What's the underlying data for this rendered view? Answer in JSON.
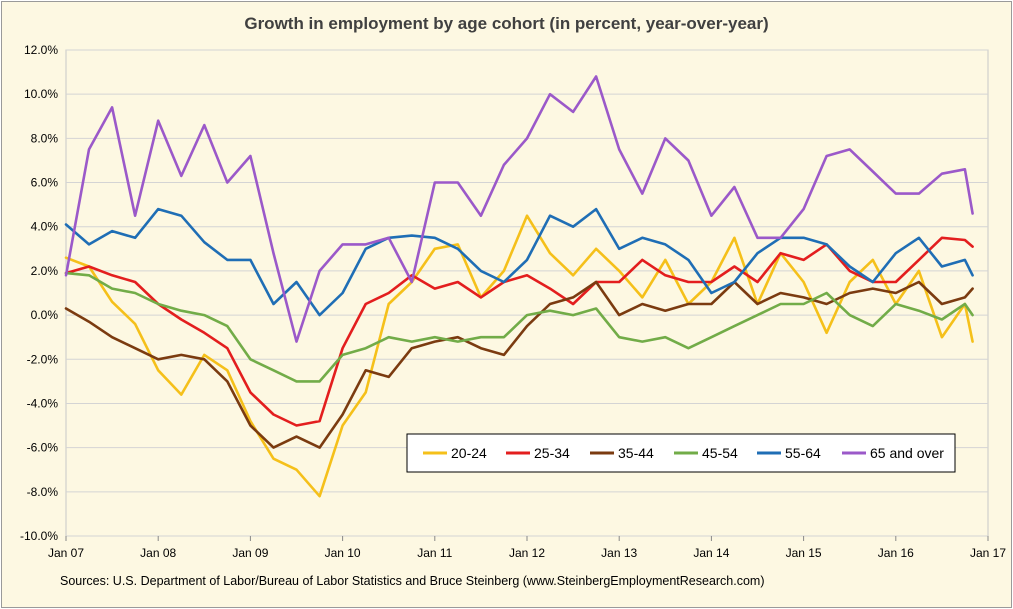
{
  "chart_data": {
    "type": "line",
    "title": "Growth in employment by age cohort (in percent, year-over-year)",
    "source": "Sources: U.S. Department of Labor/Bureau of Labor Statistics and Bruce Steinberg (www.SteinbergEmploymentResearch.com)",
    "xlabel": "",
    "ylabel": "",
    "ylim": [
      -10,
      12
    ],
    "xlim": [
      "2007-01",
      "2017-01"
    ],
    "grid": "horizontal",
    "legend_position": "bottom-right",
    "x_tick_labels": [
      "Jan 07",
      "Jan 08",
      "Jan 09",
      "Jan 10",
      "Jan 11",
      "Jan 12",
      "Jan 13",
      "Jan 14",
      "Jan 15",
      "Jan 16",
      "Jan 17"
    ],
    "y_tick_labels": [
      "12.0%",
      "10.0%",
      "8.0%",
      "6.0%",
      "4.0%",
      "2.0%",
      "0.0%",
      "-2.0%",
      "-4.0%",
      "-6.0%",
      "-8.0%",
      "-10.0%"
    ],
    "series": [
      {
        "name": "20-24",
        "color": "#f5c01a",
        "x": [
          "2007-01",
          "2007-04",
          "2007-07",
          "2007-10",
          "2008-01",
          "2008-04",
          "2008-07",
          "2008-10",
          "2009-01",
          "2009-04",
          "2009-07",
          "2009-10",
          "2010-01",
          "2010-04",
          "2010-07",
          "2010-10",
          "2011-01",
          "2011-04",
          "2011-07",
          "2011-10",
          "2012-01",
          "2012-04",
          "2012-07",
          "2012-10",
          "2013-01",
          "2013-04",
          "2013-07",
          "2013-10",
          "2014-01",
          "2014-04",
          "2014-07",
          "2014-10",
          "2015-01",
          "2015-04",
          "2015-07",
          "2015-10",
          "2016-01",
          "2016-04",
          "2016-07",
          "2016-10",
          "2016-11"
        ],
        "values": [
          2.6,
          2.2,
          0.6,
          -0.4,
          -2.5,
          -3.6,
          -1.8,
          -2.5,
          -4.8,
          -6.5,
          -7.0,
          -8.2,
          -5.0,
          -3.5,
          0.5,
          1.5,
          3.0,
          3.2,
          0.8,
          2.0,
          4.5,
          2.8,
          1.8,
          3.0,
          2.0,
          0.8,
          2.5,
          0.5,
          1.5,
          3.5,
          0.5,
          2.8,
          1.5,
          -0.8,
          1.5,
          2.5,
          0.5,
          2.0,
          -1.0,
          0.5,
          -1.2
        ]
      },
      {
        "name": "25-34",
        "color": "#e31e1e",
        "x": [
          "2007-01",
          "2007-04",
          "2007-07",
          "2007-10",
          "2008-01",
          "2008-04",
          "2008-07",
          "2008-10",
          "2009-01",
          "2009-04",
          "2009-07",
          "2009-10",
          "2010-01",
          "2010-04",
          "2010-07",
          "2010-10",
          "2011-01",
          "2011-04",
          "2011-07",
          "2011-10",
          "2012-01",
          "2012-04",
          "2012-07",
          "2012-10",
          "2013-01",
          "2013-04",
          "2013-07",
          "2013-10",
          "2014-01",
          "2014-04",
          "2014-07",
          "2014-10",
          "2015-01",
          "2015-04",
          "2015-07",
          "2015-10",
          "2016-01",
          "2016-04",
          "2016-07",
          "2016-10",
          "2016-11"
        ],
        "values": [
          1.9,
          2.2,
          1.8,
          1.5,
          0.5,
          -0.2,
          -0.8,
          -1.5,
          -3.5,
          -4.5,
          -5.0,
          -4.8,
          -1.5,
          0.5,
          1.0,
          1.8,
          1.2,
          1.5,
          0.8,
          1.5,
          1.8,
          1.2,
          0.5,
          1.5,
          1.5,
          2.5,
          1.8,
          1.5,
          1.5,
          2.2,
          1.5,
          2.8,
          2.5,
          3.2,
          2.0,
          1.5,
          1.5,
          2.5,
          3.5,
          3.4,
          3.1
        ]
      },
      {
        "name": "35-44",
        "color": "#7b3b10",
        "x": [
          "2007-01",
          "2007-04",
          "2007-07",
          "2007-10",
          "2008-01",
          "2008-04",
          "2008-07",
          "2008-10",
          "2009-01",
          "2009-04",
          "2009-07",
          "2009-10",
          "2010-01",
          "2010-04",
          "2010-07",
          "2010-10",
          "2011-01",
          "2011-04",
          "2011-07",
          "2011-10",
          "2012-01",
          "2012-04",
          "2012-07",
          "2012-10",
          "2013-01",
          "2013-04",
          "2013-07",
          "2013-10",
          "2014-01",
          "2014-04",
          "2014-07",
          "2014-10",
          "2015-01",
          "2015-04",
          "2015-07",
          "2015-10",
          "2016-01",
          "2016-04",
          "2016-07",
          "2016-10",
          "2016-11"
        ],
        "values": [
          0.3,
          -0.3,
          -1.0,
          -1.5,
          -2.0,
          -1.8,
          -2.0,
          -3.0,
          -5.0,
          -6.0,
          -5.5,
          -6.0,
          -4.5,
          -2.5,
          -2.8,
          -1.5,
          -1.2,
          -1.0,
          -1.5,
          -1.8,
          -0.5,
          0.5,
          0.8,
          1.5,
          0.0,
          0.5,
          0.2,
          0.5,
          0.5,
          1.5,
          0.5,
          1.0,
          0.8,
          0.5,
          1.0,
          1.2,
          1.0,
          1.5,
          0.5,
          0.8,
          1.2
        ]
      },
      {
        "name": "45-54",
        "color": "#72ac48",
        "x": [
          "2007-01",
          "2007-04",
          "2007-07",
          "2007-10",
          "2008-01",
          "2008-04",
          "2008-07",
          "2008-10",
          "2009-01",
          "2009-04",
          "2009-07",
          "2009-10",
          "2010-01",
          "2010-04",
          "2010-07",
          "2010-10",
          "2011-01",
          "2011-04",
          "2011-07",
          "2011-10",
          "2012-01",
          "2012-04",
          "2012-07",
          "2012-10",
          "2013-01",
          "2013-04",
          "2013-07",
          "2013-10",
          "2014-01",
          "2014-04",
          "2014-07",
          "2014-10",
          "2015-01",
          "2015-04",
          "2015-07",
          "2015-10",
          "2016-01",
          "2016-04",
          "2016-07",
          "2016-10",
          "2016-11"
        ],
        "values": [
          1.9,
          1.8,
          1.2,
          1.0,
          0.5,
          0.2,
          0.0,
          -0.5,
          -2.0,
          -2.5,
          -3.0,
          -3.0,
          -1.8,
          -1.5,
          -1.0,
          -1.2,
          -1.0,
          -1.2,
          -1.0,
          -1.0,
          0.0,
          0.2,
          0.0,
          0.3,
          -1.0,
          -1.2,
          -1.0,
          -1.5,
          -1.0,
          -0.5,
          0.0,
          0.5,
          0.5,
          1.0,
          0.0,
          -0.5,
          0.5,
          0.2,
          -0.2,
          0.5,
          0.0
        ]
      },
      {
        "name": "55-64",
        "color": "#1f6eb5",
        "x": [
          "2007-01",
          "2007-04",
          "2007-07",
          "2007-10",
          "2008-01",
          "2008-04",
          "2008-07",
          "2008-10",
          "2009-01",
          "2009-04",
          "2009-07",
          "2009-10",
          "2010-01",
          "2010-04",
          "2010-07",
          "2010-10",
          "2011-01",
          "2011-04",
          "2011-07",
          "2011-10",
          "2012-01",
          "2012-04",
          "2012-07",
          "2012-10",
          "2013-01",
          "2013-04",
          "2013-07",
          "2013-10",
          "2014-01",
          "2014-04",
          "2014-07",
          "2014-10",
          "2015-01",
          "2015-04",
          "2015-07",
          "2015-10",
          "2016-01",
          "2016-04",
          "2016-07",
          "2016-10",
          "2016-11"
        ],
        "values": [
          4.1,
          3.2,
          3.8,
          3.5,
          4.8,
          4.5,
          3.3,
          2.5,
          2.5,
          0.5,
          1.5,
          0.0,
          1.0,
          3.0,
          3.5,
          3.6,
          3.5,
          3.0,
          2.0,
          1.5,
          2.5,
          4.5,
          4.0,
          4.8,
          3.0,
          3.5,
          3.2,
          2.5,
          1.0,
          1.5,
          2.8,
          3.5,
          3.5,
          3.2,
          2.2,
          1.5,
          2.8,
          3.5,
          2.2,
          2.5,
          1.8
        ]
      },
      {
        "name": "65 and over",
        "color": "#9b59c9",
        "x": [
          "2007-01",
          "2007-04",
          "2007-07",
          "2007-10",
          "2008-01",
          "2008-04",
          "2008-07",
          "2008-10",
          "2009-01",
          "2009-04",
          "2009-07",
          "2009-10",
          "2010-01",
          "2010-04",
          "2010-07",
          "2010-10",
          "2011-01",
          "2011-04",
          "2011-07",
          "2011-10",
          "2012-01",
          "2012-04",
          "2012-07",
          "2012-10",
          "2013-01",
          "2013-04",
          "2013-07",
          "2013-10",
          "2014-01",
          "2014-04",
          "2014-07",
          "2014-10",
          "2015-01",
          "2015-04",
          "2015-07",
          "2015-10",
          "2016-01",
          "2016-04",
          "2016-07",
          "2016-10",
          "2016-11"
        ],
        "values": [
          1.8,
          7.5,
          9.4,
          4.5,
          8.8,
          6.3,
          8.6,
          6.0,
          7.2,
          2.8,
          -1.2,
          2.0,
          3.2,
          3.2,
          3.5,
          1.5,
          6.0,
          6.0,
          4.5,
          6.8,
          8.0,
          10.0,
          9.2,
          10.8,
          7.5,
          5.5,
          8.0,
          7.0,
          4.5,
          5.8,
          3.5,
          3.5,
          4.8,
          7.2,
          7.5,
          6.5,
          5.5,
          5.5,
          6.4,
          6.6,
          4.6
        ]
      }
    ]
  }
}
